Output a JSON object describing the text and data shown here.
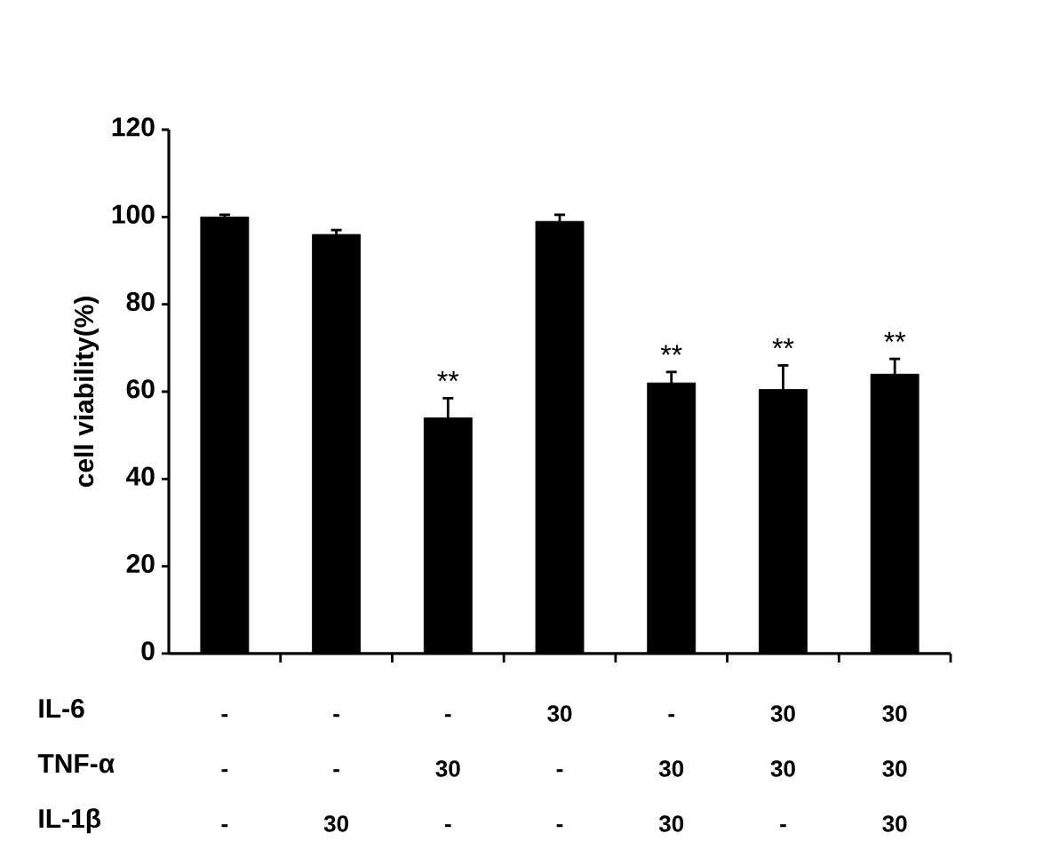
{
  "chart_data": {
    "type": "bar",
    "ylabel": "cell viability(%)",
    "categories": [
      "- - -",
      "- - 30",
      "- 30 -",
      "30 - -",
      "- 30 30",
      "30 30 -",
      "30 30 30"
    ],
    "values": [
      100,
      96,
      54,
      99,
      62,
      60.5,
      64
    ],
    "errors": [
      0.5,
      1,
      4.5,
      1.5,
      2.5,
      5.5,
      3.5
    ],
    "value_labels": [
      null,
      null,
      "**",
      null,
      "**",
      "**",
      "**"
    ],
    "color": "#000000",
    "ylim": [
      0,
      120
    ],
    "yticks": [
      0,
      20,
      40,
      60,
      80,
      100,
      120
    ],
    "annotations": [
      "IL-6",
      "TNF-α",
      "IL-1β"
    ]
  }
}
